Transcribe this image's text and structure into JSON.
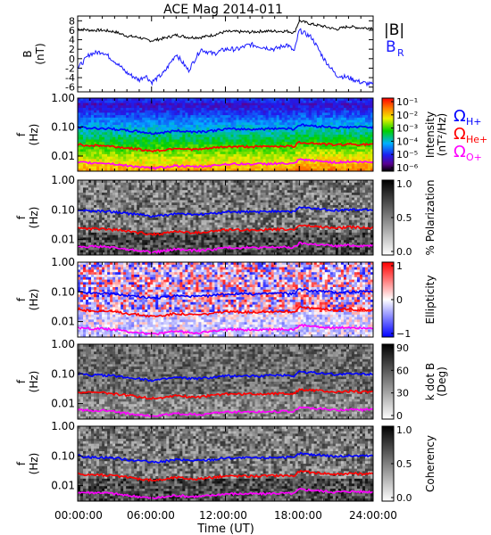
{
  "title": "ACE Mag 2014-011",
  "x_axis": {
    "label": "Time (UT)",
    "ticks": [
      "00:00:00",
      "06:00:00",
      "12:00:00",
      "18:00:00",
      "24:00:00"
    ],
    "range_hours": [
      0,
      24
    ]
  },
  "legend": {
    "b_total": "|B|",
    "b_r": "B",
    "b_r_sub": "R",
    "omega": "Ω",
    "h": "H+",
    "he": "He+",
    "o": "O+"
  },
  "colors": {
    "b_total": "#000000",
    "b_r": "#1a1aff",
    "h_gyro": "#0000ff",
    "he_gyro": "#ff0000",
    "o_gyro": "#ff00ff"
  },
  "panels": {
    "mag": {
      "ylabel": "B",
      "yunit": "(nT)",
      "ylim": [
        -7,
        9
      ],
      "yticks": [
        "8",
        "6",
        "4",
        "2",
        "0",
        "-2",
        "-4",
        "-6"
      ]
    },
    "psd": {
      "ylabel": "f",
      "yunit": "(Hz)",
      "yticks": [
        "1.00",
        "0.10",
        "0.01"
      ],
      "colorbar_label": "Intensity",
      "colorbar_unit": "(nT²/Hz)",
      "colorbar_ticks": [
        "10⁻¹",
        "10⁻²",
        "10⁻³",
        "10⁻⁴",
        "10⁻⁵",
        "10⁻⁶"
      ],
      "colormap": "rainbow"
    },
    "pol": {
      "ylabel": "f",
      "yunit": "(Hz)",
      "yticks": [
        "1.00",
        "0.10",
        "0.01"
      ],
      "colorbar_label": "% Polarization",
      "colorbar_ticks": [
        "1.0",
        "0.5",
        "0.0"
      ],
      "colormap": "gray"
    },
    "ell": {
      "ylabel": "f",
      "yunit": "(Hz)",
      "yticks": [
        "1.00",
        "0.10",
        "0.01"
      ],
      "colorbar_label": "Ellipticity",
      "colorbar_ticks": [
        "1",
        "0",
        "−1"
      ],
      "colormap": "blue-white-red"
    },
    "kdb": {
      "ylabel": "f",
      "yunit": "(Hz)",
      "yticks": [
        "1.00",
        "0.10",
        "0.01"
      ],
      "colorbar_label": "k dot B",
      "colorbar_unit": "(Deg)",
      "colorbar_ticks": [
        "90",
        "60",
        "30",
        "0"
      ],
      "colormap": "gray"
    },
    "coh": {
      "ylabel": "f",
      "yunit": "(Hz)",
      "yticks": [
        "1.00",
        "0.10",
        "0.01"
      ],
      "colorbar_label": "Coherency",
      "colorbar_ticks": [
        "1.0",
        "0.5",
        "0.0"
      ],
      "colormap": "gray"
    }
  },
  "chart_data": [
    {
      "type": "line",
      "x": [
        0,
        1,
        2,
        3,
        4,
        5,
        5.5,
        6,
        7,
        8,
        9,
        10,
        11,
        12,
        13,
        14,
        15,
        16,
        17,
        17.6,
        18,
        19,
        20,
        21,
        22,
        23,
        24
      ],
      "series": [
        {
          "name": "|B|",
          "values": [
            6.3,
            6.0,
            6.0,
            5.7,
            4.8,
            4.5,
            4.0,
            3.8,
            4.3,
            5.0,
            4.5,
            4.5,
            5.0,
            5.7,
            5.7,
            5.6,
            5.8,
            5.8,
            5.8,
            5.5,
            8.0,
            7.3,
            6.8,
            6.2,
            6.8,
            6.5,
            6.5
          ]
        },
        {
          "name": "B",
          "values": [
            -2.0,
            1.0,
            1.5,
            -0.5,
            -3.0,
            -4.5,
            -3.5,
            -5.0,
            -3.0,
            1.0,
            -2.5,
            2.0,
            1.0,
            2.0,
            2.0,
            3.0,
            2.5,
            2.0,
            3.0,
            1.5,
            6.0,
            4.5,
            0.0,
            -3.5,
            -4.0,
            -5.0,
            -5.5
          ]
        }
      ],
      "ylabel": "B (nT)",
      "ylim": [
        -7,
        9
      ],
      "xlim": [
        0,
        24
      ]
    },
    {
      "type": "heatmap",
      "x": [
        0,
        1,
        2,
        3,
        4,
        5,
        5.5,
        6,
        7,
        8,
        9,
        10,
        11,
        12,
        13,
        14,
        15,
        16,
        17,
        17.6,
        18,
        19,
        20,
        21,
        22,
        23,
        24
      ],
      "series": [
        {
          "name": "Ω H+",
          "values": [
            0.1,
            0.09,
            0.09,
            0.085,
            0.075,
            0.07,
            0.065,
            0.06,
            0.065,
            0.075,
            0.07,
            0.07,
            0.075,
            0.085,
            0.085,
            0.085,
            0.085,
            0.09,
            0.09,
            0.085,
            0.12,
            0.11,
            0.105,
            0.095,
            0.1,
            0.1,
            0.1
          ]
        },
        {
          "name": "Ω He+",
          "values": [
            0.025,
            0.023,
            0.023,
            0.021,
            0.019,
            0.017,
            0.016,
            0.015,
            0.016,
            0.019,
            0.017,
            0.017,
            0.019,
            0.021,
            0.021,
            0.021,
            0.021,
            0.022,
            0.022,
            0.021,
            0.03,
            0.028,
            0.026,
            0.024,
            0.026,
            0.025,
            0.025
          ]
        },
        {
          "name": "Ω O+",
          "values": [
            0.006,
            0.0058,
            0.0058,
            0.0053,
            0.0046,
            0.0043,
            0.004,
            0.0037,
            0.0041,
            0.0047,
            0.0043,
            0.0043,
            0.0047,
            0.0053,
            0.0053,
            0.0053,
            0.0053,
            0.0055,
            0.0055,
            0.0053,
            0.0075,
            0.007,
            0.0065,
            0.006,
            0.0064,
            0.0062,
            0.0062
          ]
        }
      ],
      "ylabel": "f (Hz)",
      "yscale": "log",
      "ylim": [
        0.003,
        1.0
      ],
      "colorbar": "Intensity (nT²/Hz)",
      "clim": [
        1e-06,
        0.1
      ]
    },
    {
      "type": "heatmap",
      "ylabel": "f (Hz)",
      "yscale": "log",
      "colorbar": "% Polarization",
      "clim": [
        0,
        1
      ]
    },
    {
      "type": "heatmap",
      "ylabel": "f (Hz)",
      "yscale": "log",
      "colorbar": "Ellipticity",
      "clim": [
        -1,
        1
      ]
    },
    {
      "type": "heatmap",
      "ylabel": "f (Hz)",
      "yscale": "log",
      "colorbar": "k dot B (Deg)",
      "clim": [
        0,
        90
      ]
    },
    {
      "type": "heatmap",
      "ylabel": "f (Hz)",
      "yscale": "log",
      "colorbar": "Coherency",
      "clim": [
        0,
        1
      ]
    }
  ]
}
